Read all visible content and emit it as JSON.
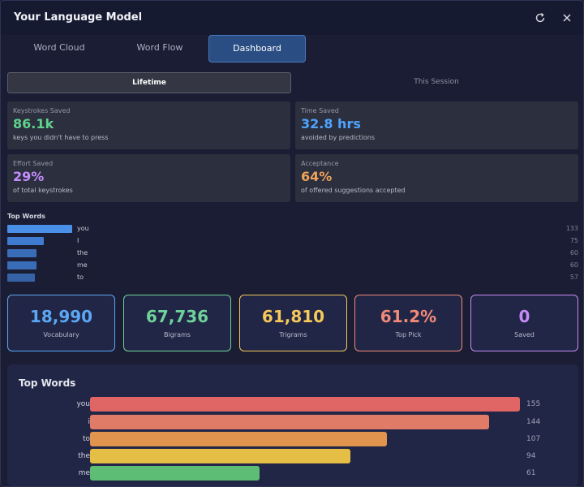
{
  "window": {
    "title": "Your Language Model"
  },
  "tabs": [
    {
      "label": "Word Cloud",
      "active": false
    },
    {
      "label": "Word Flow",
      "active": false
    },
    {
      "label": "Dashboard",
      "active": true
    }
  ],
  "period_toggle": {
    "lifetime": "Lifetime",
    "session": "This Session",
    "selected": "Lifetime"
  },
  "stats": [
    {
      "label": "Keystrokes Saved",
      "value": "86.1k",
      "sub": "keys you didn't have to press",
      "color": "#5fd38d"
    },
    {
      "label": "Time Saved",
      "value": "32.8 hrs",
      "sub": "avoided by predictions",
      "color": "#4fa3ff"
    },
    {
      "label": "Effort Saved",
      "value": "29%",
      "sub": "of total keystrokes",
      "color": "#c48dff"
    },
    {
      "label": "Acceptance",
      "value": "64%",
      "sub": "of offered suggestions accepted",
      "color": "#f0a25a"
    }
  ],
  "top_words_mini": {
    "title": "Top Words",
    "max": 133,
    "items": [
      {
        "word": "you",
        "count": 133,
        "color": "#4a8fe8"
      },
      {
        "word": "I",
        "count": 75,
        "color": "#3f7bd0"
      },
      {
        "word": "the",
        "count": 60,
        "color": "#3a6db8"
      },
      {
        "word": "me",
        "count": 60,
        "color": "#3a6db8"
      },
      {
        "word": "to",
        "count": 57,
        "color": "#3663a8"
      }
    ]
  },
  "summary_cards": [
    {
      "value": "18,990",
      "caption": "Vocabulary",
      "color": "#5aa8f5"
    },
    {
      "value": "67,736",
      "caption": "Bigrams",
      "color": "#6ed39a"
    },
    {
      "value": "61,810",
      "caption": "Trigrams",
      "color": "#f5c85a"
    },
    {
      "value": "61.2%",
      "caption": "Top Pick",
      "color": "#f08a7a"
    },
    {
      "value": "0",
      "caption": "Saved",
      "color": "#c58cf5"
    }
  ],
  "top_words_chart": {
    "title": "Top Words",
    "max": 155,
    "items": [
      {
        "word": "you",
        "count": 155,
        "color": "#e06666"
      },
      {
        "word": "i",
        "count": 144,
        "color": "#e07b68"
      },
      {
        "word": "to",
        "count": 107,
        "color": "#e0944e"
      },
      {
        "word": "the",
        "count": 94,
        "color": "#e5bf45"
      },
      {
        "word": "me",
        "count": 61,
        "color": "#5dbd74"
      }
    ]
  }
}
